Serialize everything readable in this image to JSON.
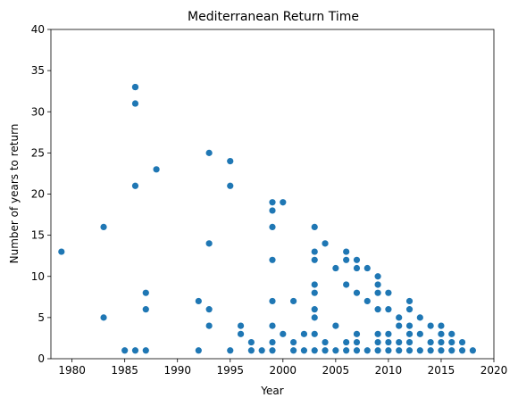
{
  "chart_data": {
    "type": "scatter",
    "title": "Mediterranean Return Time",
    "xlabel": "Year",
    "ylabel": "Number of years to return",
    "xlim": [
      1978,
      2020
    ],
    "ylim": [
      0,
      40
    ],
    "xticks": [
      1980,
      1985,
      1990,
      1995,
      2000,
      2005,
      2010,
      2015,
      2020
    ],
    "yticks": [
      0,
      5,
      10,
      15,
      20,
      25,
      30,
      35,
      40
    ],
    "grid": false,
    "color": "#1f77b4",
    "points": [
      [
        1979,
        13
      ],
      [
        1983,
        16
      ],
      [
        1983,
        5
      ],
      [
        1985,
        1
      ],
      [
        1986,
        33
      ],
      [
        1986,
        33
      ],
      [
        1986,
        31
      ],
      [
        1986,
        21
      ],
      [
        1986,
        1
      ],
      [
        1987,
        8
      ],
      [
        1987,
        6
      ],
      [
        1987,
        1
      ],
      [
        1988,
        23
      ],
      [
        1992,
        7
      ],
      [
        1992,
        1
      ],
      [
        1993,
        25
      ],
      [
        1993,
        14
      ],
      [
        1993,
        6
      ],
      [
        1993,
        4
      ],
      [
        1995,
        24
      ],
      [
        1995,
        21
      ],
      [
        1995,
        1
      ],
      [
        1996,
        4
      ],
      [
        1996,
        3
      ],
      [
        1997,
        2
      ],
      [
        1997,
        1
      ],
      [
        1998,
        1
      ],
      [
        1999,
        19
      ],
      [
        1999,
        18
      ],
      [
        1999,
        16
      ],
      [
        1999,
        12
      ],
      [
        1999,
        7
      ],
      [
        1999,
        4
      ],
      [
        1999,
        2
      ],
      [
        1999,
        1
      ],
      [
        2000,
        19
      ],
      [
        2000,
        3
      ],
      [
        2001,
        7
      ],
      [
        2001,
        2
      ],
      [
        2001,
        1
      ],
      [
        2002,
        3
      ],
      [
        2002,
        1
      ],
      [
        2003,
        16
      ],
      [
        2003,
        13
      ],
      [
        2003,
        12
      ],
      [
        2003,
        9
      ],
      [
        2003,
        8
      ],
      [
        2003,
        6
      ],
      [
        2003,
        5
      ],
      [
        2003,
        3
      ],
      [
        2003,
        1
      ],
      [
        2004,
        14
      ],
      [
        2004,
        2
      ],
      [
        2004,
        1
      ],
      [
        2005,
        11
      ],
      [
        2005,
        4
      ],
      [
        2005,
        1
      ],
      [
        2006,
        13
      ],
      [
        2006,
        12
      ],
      [
        2006,
        9
      ],
      [
        2006,
        2
      ],
      [
        2006,
        1
      ],
      [
        2007,
        12
      ],
      [
        2007,
        11
      ],
      [
        2007,
        8
      ],
      [
        2007,
        3
      ],
      [
        2007,
        2
      ],
      [
        2007,
        1
      ],
      [
        2008,
        11
      ],
      [
        2008,
        7
      ],
      [
        2008,
        1
      ],
      [
        2009,
        10
      ],
      [
        2009,
        9
      ],
      [
        2009,
        8
      ],
      [
        2009,
        6
      ],
      [
        2009,
        3
      ],
      [
        2009,
        2
      ],
      [
        2009,
        1
      ],
      [
        2010,
        8
      ],
      [
        2010,
        6
      ],
      [
        2010,
        3
      ],
      [
        2010,
        2
      ],
      [
        2010,
        1
      ],
      [
        2011,
        5
      ],
      [
        2011,
        4
      ],
      [
        2011,
        2
      ],
      [
        2011,
        1
      ],
      [
        2012,
        7
      ],
      [
        2012,
        6
      ],
      [
        2012,
        4
      ],
      [
        2012,
        3
      ],
      [
        2012,
        2
      ],
      [
        2012,
        1
      ],
      [
        2013,
        5
      ],
      [
        2013,
        3
      ],
      [
        2013,
        1
      ],
      [
        2014,
        4
      ],
      [
        2014,
        2
      ],
      [
        2014,
        1
      ],
      [
        2015,
        4
      ],
      [
        2015,
        3
      ],
      [
        2015,
        2
      ],
      [
        2015,
        1
      ],
      [
        2016,
        3
      ],
      [
        2016,
        2
      ],
      [
        2016,
        1
      ],
      [
        2017,
        2
      ],
      [
        2017,
        1
      ],
      [
        2018,
        1
      ]
    ]
  }
}
